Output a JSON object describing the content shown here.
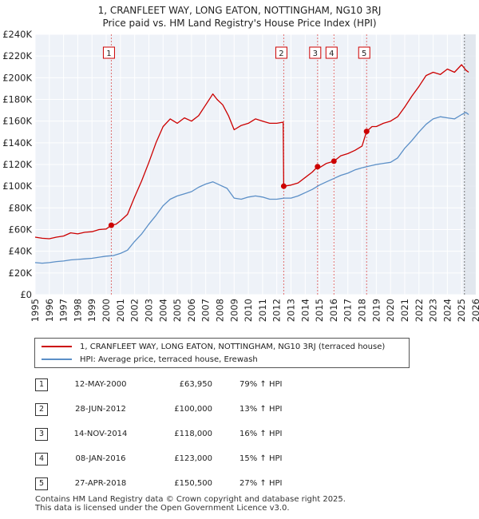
{
  "title_line1": "1, CRANFLEET WAY, LONG EATON, NOTTINGHAM, NG10 3RJ",
  "title_line2": "Price paid vs. HM Land Registry's House Price Index (HPI)",
  "chart_data": {
    "type": "line",
    "xlim": [
      1995,
      2026
    ],
    "ylim": [
      0,
      240000
    ],
    "y_ticks": [
      0,
      20000,
      40000,
      60000,
      80000,
      100000,
      120000,
      140000,
      160000,
      180000,
      200000,
      220000,
      240000
    ],
    "y_tick_labels": [
      "£0",
      "£20K",
      "£40K",
      "£60K",
      "£80K",
      "£100K",
      "£120K",
      "£140K",
      "£160K",
      "£180K",
      "£200K",
      "£220K",
      "£240K"
    ],
    "x_ticks": [
      1995,
      1996,
      1997,
      1998,
      1999,
      2000,
      2001,
      2002,
      2003,
      2004,
      2005,
      2006,
      2007,
      2008,
      2009,
      2010,
      2011,
      2012,
      2013,
      2014,
      2015,
      2016,
      2017,
      2018,
      2019,
      2020,
      2021,
      2022,
      2023,
      2024,
      2025,
      2026
    ],
    "x_tick_labels": [
      "1995",
      "1996",
      "1997",
      "1998",
      "1999",
      "2000",
      "2001",
      "2002",
      "2003",
      "2004",
      "2005",
      "2006",
      "2007",
      "2008",
      "2009",
      "2010",
      "2011",
      "2012",
      "2013",
      "2014",
      "2015",
      "2016",
      "2017",
      "2018",
      "2019",
      "2020",
      "2021",
      "2022",
      "2023",
      "2024",
      "2025",
      "2026"
    ],
    "grid": true,
    "forecast_from": 2025.2,
    "series": [
      {
        "name": "1, CRANFLEET WAY, LONG EATON, NOTTINGHAM, NG10 3RJ (terraced house)",
        "color": "#cc0000",
        "x": [
          1995.0,
          1995.5,
          1996.0,
          1996.5,
          1997.0,
          1997.5,
          1998.0,
          1998.5,
          1999.0,
          1999.5,
          2000.0,
          2000.36,
          2000.7,
          2001.0,
          2001.5,
          2002.0,
          2002.5,
          2003.0,
          2003.5,
          2004.0,
          2004.5,
          2005.0,
          2005.5,
          2006.0,
          2006.5,
          2007.0,
          2007.5,
          2007.8,
          2008.2,
          2008.6,
          2009.0,
          2009.5,
          2010.0,
          2010.5,
          2011.0,
          2011.5,
          2012.0,
          2012.45,
          2012.49,
          2013.0,
          2013.5,
          2014.0,
          2014.5,
          2014.87,
          2015.0,
          2015.5,
          2016.02,
          2016.5,
          2017.0,
          2017.5,
          2018.0,
          2018.32,
          2018.7,
          2019.0,
          2019.5,
          2020.0,
          2020.5,
          2021.0,
          2021.5,
          2022.0,
          2022.5,
          2023.0,
          2023.5,
          2024.0,
          2024.5,
          2025.0,
          2025.3,
          2025.5
        ],
        "values": [
          53000,
          52000,
          51500,
          53000,
          54000,
          57000,
          56000,
          57500,
          58000,
          60000,
          60500,
          63950,
          65000,
          68000,
          74000,
          90000,
          105000,
          122000,
          140000,
          155000,
          162000,
          158000,
          163000,
          160000,
          165000,
          175000,
          185000,
          180000,
          175000,
          165000,
          152000,
          156000,
          158000,
          162000,
          160000,
          158000,
          158000,
          159000,
          100000,
          101000,
          103000,
          108000,
          113000,
          118000,
          117000,
          121000,
          123000,
          128000,
          130000,
          133000,
          137000,
          150500,
          155000,
          155000,
          158000,
          160000,
          164000,
          173000,
          183000,
          192000,
          202000,
          205000,
          203000,
          208000,
          205000,
          212000,
          207000,
          205000
        ]
      },
      {
        "name": "HPI: Average price, terraced house, Erewash",
        "color": "#5b8fc7",
        "x": [
          1995.0,
          1995.5,
          1996.0,
          1996.5,
          1997.0,
          1997.5,
          1998.0,
          1998.5,
          1999.0,
          1999.5,
          2000.0,
          2000.5,
          2001.0,
          2001.5,
          2002.0,
          2002.5,
          2003.0,
          2003.5,
          2004.0,
          2004.5,
          2005.0,
          2005.5,
          2006.0,
          2006.5,
          2007.0,
          2007.5,
          2008.0,
          2008.5,
          2009.0,
          2009.5,
          2010.0,
          2010.5,
          2011.0,
          2011.5,
          2012.0,
          2012.5,
          2013.0,
          2013.5,
          2014.0,
          2014.5,
          2015.0,
          2015.5,
          2016.0,
          2016.5,
          2017.0,
          2017.5,
          2018.0,
          2018.5,
          2019.0,
          2019.5,
          2020.0,
          2020.5,
          2021.0,
          2021.5,
          2022.0,
          2022.5,
          2023.0,
          2023.5,
          2024.0,
          2024.5,
          2025.0,
          2025.3,
          2025.5
        ],
        "values": [
          29500,
          29000,
          29500,
          30500,
          31000,
          32000,
          32500,
          33000,
          33500,
          34500,
          35500,
          36000,
          38000,
          41000,
          49000,
          56000,
          65000,
          73000,
          82000,
          88000,
          91000,
          93000,
          95000,
          99000,
          102000,
          104000,
          101000,
          98000,
          89000,
          88000,
          90000,
          91000,
          90000,
          88000,
          88000,
          89000,
          89000,
          91000,
          94000,
          97000,
          101000,
          104000,
          107000,
          110000,
          112000,
          115000,
          117000,
          118500,
          120000,
          121000,
          122000,
          126000,
          135000,
          142000,
          150000,
          157000,
          162000,
          164000,
          163000,
          162000,
          166000,
          168000,
          166000
        ]
      }
    ],
    "markers": [
      {
        "num": "1",
        "x": 2000.36,
        "y": 63950
      },
      {
        "num": "2",
        "x": 2012.49,
        "y": 100000
      },
      {
        "num": "3",
        "x": 2014.87,
        "y": 118000
      },
      {
        "num": "4",
        "x": 2016.02,
        "y": 123000
      },
      {
        "num": "5",
        "x": 2018.32,
        "y": 150500
      }
    ]
  },
  "legend": {
    "property_label": "1, CRANFLEET WAY, LONG EATON, NOTTINGHAM, NG10 3RJ (terraced house)",
    "hpi_label": "HPI: Average price, terraced house, Erewash"
  },
  "sales": [
    {
      "num": "1",
      "date": "12-MAY-2000",
      "price": "£63,950",
      "hpi": "79% ↑ HPI"
    },
    {
      "num": "2",
      "date": "28-JUN-2012",
      "price": "£100,000",
      "hpi": "13% ↑ HPI"
    },
    {
      "num": "3",
      "date": "14-NOV-2014",
      "price": "£118,000",
      "hpi": "16% ↑ HPI"
    },
    {
      "num": "4",
      "date": "08-JAN-2016",
      "price": "£123,000",
      "hpi": "15% ↑ HPI"
    },
    {
      "num": "5",
      "date": "27-APR-2018",
      "price": "£150,500",
      "hpi": "27% ↑ HPI"
    }
  ],
  "footer_line1": "Contains HM Land Registry data © Crown copyright and database right 2025.",
  "footer_line2": "This data is licensed under the Open Government Licence v3.0."
}
